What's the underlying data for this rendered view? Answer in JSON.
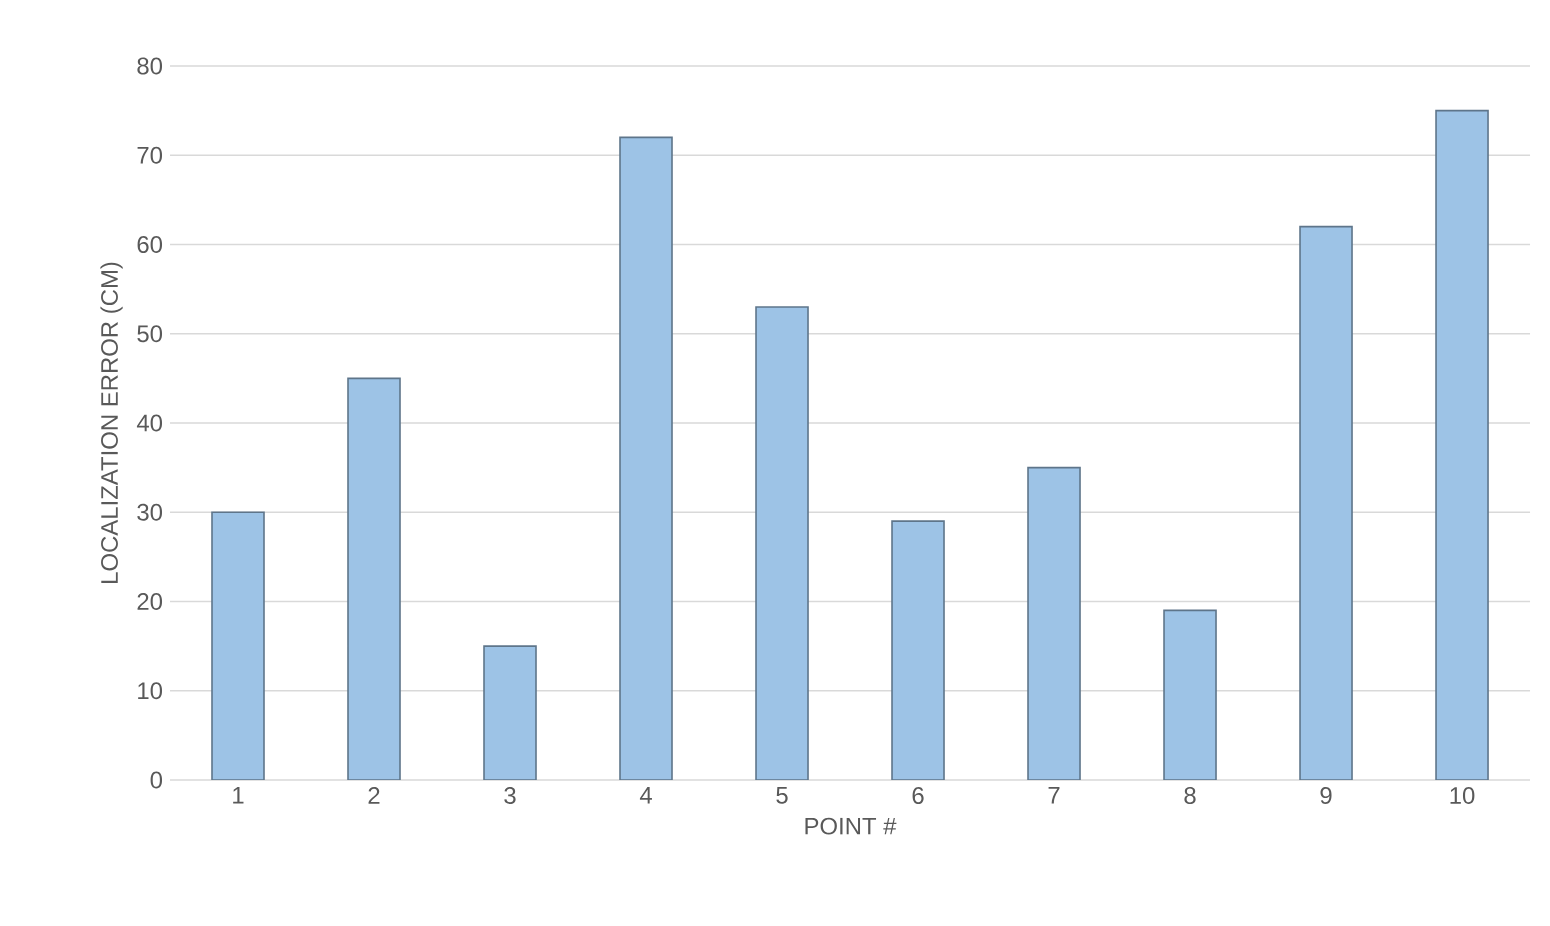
{
  "chart_data": {
    "type": "bar",
    "xlabel": "POINT #",
    "ylabel": "LOCALIZATION ERROR (CM)",
    "categories": [
      "1",
      "2",
      "3",
      "4",
      "5",
      "6",
      "7",
      "8",
      "9",
      "10"
    ],
    "values": [
      30,
      45,
      15,
      72,
      53,
      29,
      35,
      19,
      62,
      75
    ],
    "color": "#9dc3e6",
    "ylim": [
      0,
      80
    ],
    "yticks": [
      0,
      10,
      20,
      30,
      40,
      50,
      60,
      70,
      80
    ],
    "grid": "y"
  }
}
